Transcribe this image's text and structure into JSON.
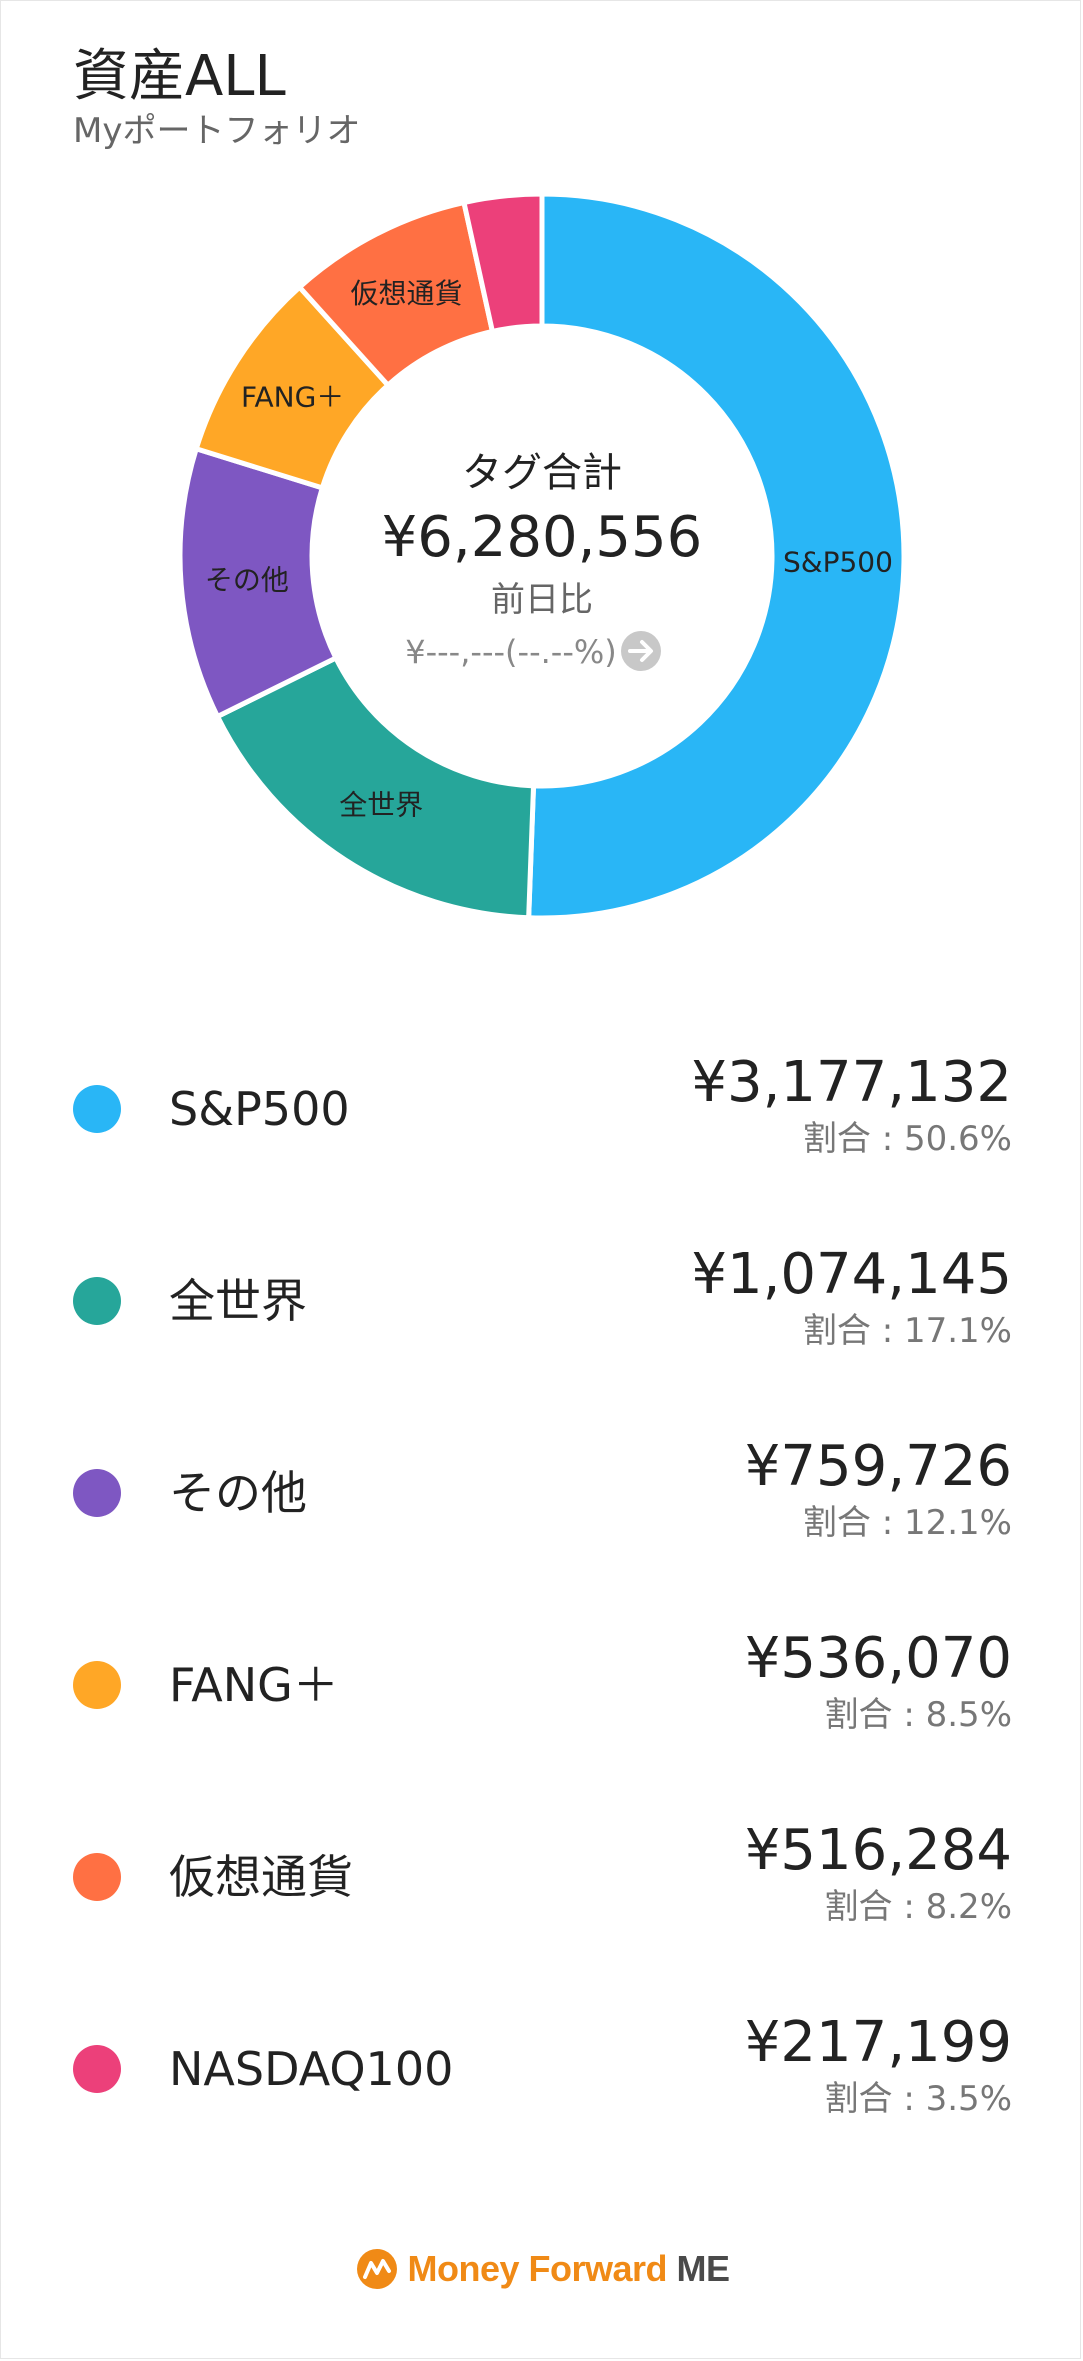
{
  "header": {
    "title": "資産ALL",
    "subtitle": "Myポートフォリオ"
  },
  "center": {
    "label": "タグ合計",
    "total": "¥6,280,556",
    "change_label": "前日比",
    "change_value": "¥---,---(--.--%)",
    "arrow_icon": "arrow-right-circle-icon"
  },
  "colors": {
    "S&P500": "#29b6f6",
    "全世界": "#26a69a",
    "その他": "#7e57c2",
    "FANG＋": "#ffa726",
    "仮想通貨": "#ff7043",
    "NASDAQ100": "#ec407a"
  },
  "chart_data": {
    "type": "pie",
    "donut": true,
    "categories": [
      "S&P500",
      "全世界",
      "その他",
      "FANG＋",
      "仮想通貨",
      "NASDAQ100"
    ],
    "values": [
      3177132,
      1074145,
      759726,
      536070,
      516284,
      217199
    ],
    "percent": [
      50.6,
      17.1,
      12.1,
      8.5,
      8.2,
      3.5
    ],
    "total": 6280556
  },
  "legend": [
    {
      "name": "S&P500",
      "value": "¥3,177,132",
      "ratio": "割合 : 50.6%"
    },
    {
      "name": "全世界",
      "value": "¥1,074,145",
      "ratio": "割合 : 17.1%"
    },
    {
      "name": "その他",
      "value": "¥759,726",
      "ratio": "割合 : 12.1%"
    },
    {
      "name": "FANG＋",
      "value": "¥536,070",
      "ratio": "割合 : 8.5%"
    },
    {
      "name": "仮想通貨",
      "value": "¥516,284",
      "ratio": "割合 : 8.2%"
    },
    {
      "name": "NASDAQ100",
      "value": "¥217,199",
      "ratio": "割合 : 3.5%"
    }
  ],
  "footer": {
    "logo_icon": "money-forward-logo-icon",
    "brand": "Money Forward",
    "suffix": "ME"
  }
}
